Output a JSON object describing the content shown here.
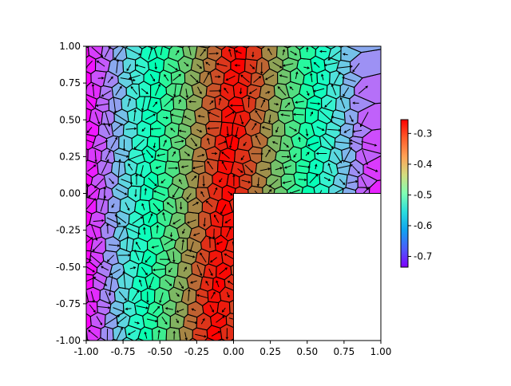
{
  "chart_data": {
    "type": "heatmap",
    "subtype": "voronoi-polygon-mesh with quiver vectors",
    "title": "",
    "xlabel": "",
    "ylabel": "",
    "xlim": [
      -1.0,
      1.0
    ],
    "ylim": [
      -1.0,
      1.0
    ],
    "xticks": [
      "-1.00",
      "-0.75",
      "-0.50",
      "-0.25",
      "0.00",
      "0.25",
      "0.50",
      "0.75",
      "1.00"
    ],
    "yticks": [
      "-1.00",
      "-0.75",
      "-0.50",
      "-0.25",
      "0.00",
      "0.25",
      "0.50",
      "0.75",
      "1.00"
    ],
    "domain": "L-shaped region: square [-1,1]x[-1,1] with lower-right quadrant [0,1]x[-1,0] removed",
    "empty_region": {
      "x": [
        0.0,
        1.0
      ],
      "y": [
        -1.0,
        0.0
      ]
    },
    "field": "value peaks (about -0.26) along a band near x = -0.05 + 0.09*y and falls to about -0.73 at the left and right edges",
    "colormap": "rainbow",
    "colorbar": {
      "range": [
        -0.735,
        -0.255
      ],
      "ticks": [
        "-0.3",
        "-0.4",
        "-0.5",
        "-0.6",
        "-0.7"
      ],
      "placement": "right"
    },
    "grid": false,
    "legend": "none"
  }
}
